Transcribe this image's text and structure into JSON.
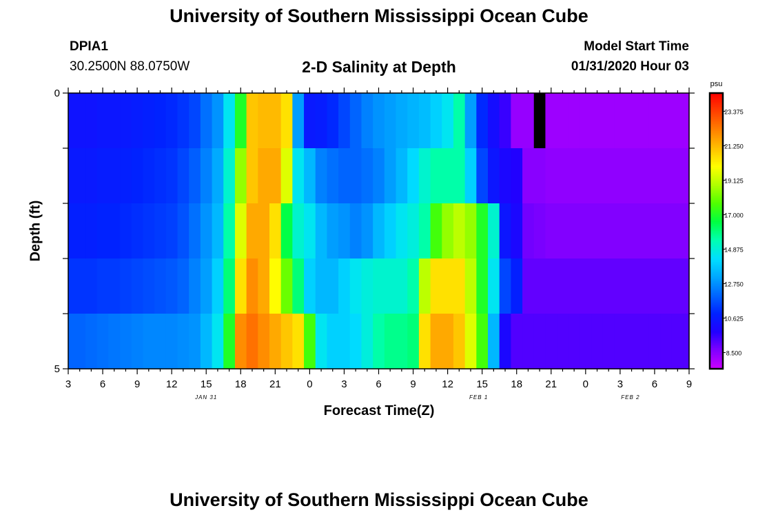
{
  "header": {
    "title": "University of Southern Mississippi Ocean Cube",
    "station_id": "DPIA1",
    "coordinates": "30.2500N 88.0750W",
    "plot_title": "2-D Salinity at Depth",
    "model_label": "Model Start Time",
    "model_time": "01/31/2020 Hour 03"
  },
  "footer": {
    "title": "University of Southern Mississippi Ocean Cube"
  },
  "chart_data": {
    "type": "heatmap",
    "title": "2-D Salinity at Depth",
    "xlabel": "Forecast Time(Z)",
    "ylabel": "Depth (ft)",
    "x_hours": [
      3,
      4,
      5,
      6,
      7,
      8,
      9,
      10,
      11,
      12,
      13,
      14,
      15,
      16,
      17,
      18,
      19,
      20,
      21,
      22,
      23,
      24,
      25,
      26,
      27,
      28,
      29,
      30,
      31,
      32,
      33,
      34,
      35,
      36,
      37,
      38,
      39,
      40,
      41,
      42,
      43,
      44,
      45,
      46,
      47,
      48,
      49,
      50,
      51,
      52,
      53,
      54,
      55,
      56,
      57
    ],
    "x_tick_labels": [
      "3",
      "6",
      "9",
      "12",
      "15",
      "18",
      "21",
      "0",
      "3",
      "6",
      "9",
      "12",
      "15",
      "18",
      "21",
      "0",
      "3",
      "6",
      "9"
    ],
    "date_labels": [
      "JAN 31",
      "FEB 1",
      "FEB 2"
    ],
    "y_range": [
      0,
      5
    ],
    "y_tick_labels": [
      "0",
      "5"
    ],
    "depth_rows": [
      0,
      1,
      2,
      3,
      4
    ],
    "zmin": 7.5,
    "zmax": 24.5,
    "colorbar": {
      "unit": "psu",
      "tick_labels": [
        "23.375",
        "21.250",
        "19.125",
        "17.000",
        "14.875",
        "12.750",
        "10.625",
        "8.500"
      ],
      "tick_values": [
        23.375,
        21.25,
        19.125,
        17.0,
        14.875,
        12.75,
        10.625,
        8.5
      ],
      "colors": [
        "#cc00ff",
        "#8000ff",
        "#2200ff",
        "#0022ff",
        "#0066ff",
        "#00a8ff",
        "#00e0ff",
        "#00ffb0",
        "#00ff40",
        "#50ff00",
        "#b0ff00",
        "#ffff00",
        "#ffc000",
        "#ff8000",
        "#ff4000",
        "#ff0000"
      ]
    },
    "values": [
      [
        10.4,
        10.4,
        10.4,
        10.5,
        10.5,
        10.6,
        10.7,
        10.8,
        10.9,
        11.0,
        11.2,
        11.5,
        12.2,
        12.8,
        14.5,
        17.0,
        21.0,
        21.2,
        21.2,
        20.5,
        13.0,
        10.6,
        10.7,
        11.0,
        11.5,
        12.0,
        12.5,
        12.8,
        13.0,
        13.2,
        13.4,
        13.6,
        14.0,
        14.5,
        15.5,
        13.0,
        11.0,
        10.2,
        9.5,
        8.3,
        8.3,
        0,
        8.2,
        8.2,
        8.2,
        8.2,
        8.2,
        8.2,
        8.2,
        8.2,
        8.2,
        8.2,
        8.2,
        8.2,
        8.2
      ],
      [
        10.6,
        10.6,
        10.6,
        10.7,
        10.7,
        10.8,
        10.9,
        11.0,
        11.1,
        11.2,
        11.5,
        11.9,
        12.5,
        13.2,
        15.0,
        18.5,
        21.0,
        21.5,
        21.5,
        19.5,
        14.5,
        13.5,
        12.5,
        12.2,
        12.0,
        12.0,
        12.2,
        12.5,
        13.0,
        13.5,
        14.2,
        15.0,
        15.5,
        15.5,
        15.5,
        14.0,
        11.5,
        10.5,
        10.0,
        9.8,
        8.5,
        8.5,
        8.4,
        8.4,
        8.4,
        8.4,
        8.4,
        8.4,
        8.4,
        8.4,
        8.4,
        8.4,
        8.4,
        8.4,
        8.4
      ],
      [
        10.8,
        10.8,
        10.8,
        10.9,
        10.9,
        11.0,
        11.1,
        11.2,
        11.3,
        11.4,
        11.7,
        12.2,
        12.8,
        13.5,
        15.5,
        19.5,
        21.5,
        21.5,
        20.5,
        16.5,
        15.0,
        14.5,
        13.5,
        13.0,
        12.8,
        12.5,
        12.8,
        13.5,
        14.0,
        14.5,
        14.8,
        15.5,
        17.5,
        18.5,
        19.0,
        18.5,
        17.0,
        15.0,
        10.5,
        10.0,
        8.8,
        8.7,
        8.6,
        8.6,
        8.6,
        8.6,
        8.6,
        8.6,
        8.6,
        8.6,
        8.6,
        8.6,
        8.6,
        8.6,
        8.6
      ],
      [
        11.2,
        11.2,
        11.2,
        11.3,
        11.3,
        11.4,
        11.5,
        11.6,
        11.7,
        11.8,
        12.0,
        12.5,
        13.0,
        14.0,
        16.0,
        20.5,
        22.0,
        21.5,
        20.0,
        18.0,
        16.0,
        14.0,
        13.5,
        13.5,
        14.0,
        14.5,
        14.8,
        15.0,
        15.0,
        15.0,
        15.5,
        19.0,
        20.5,
        20.5,
        20.5,
        19.0,
        17.0,
        14.5,
        11.5,
        10.8,
        9.0,
        9.0,
        9.0,
        9.0,
        9.0,
        9.0,
        9.0,
        9.0,
        9.0,
        9.0,
        9.0,
        9.0,
        9.0,
        9.0,
        9.0
      ],
      [
        12.0,
        12.0,
        12.1,
        12.2,
        12.3,
        12.4,
        12.5,
        12.6,
        12.6,
        12.6,
        12.7,
        12.8,
        13.5,
        14.5,
        17.0,
        22.0,
        22.5,
        22.0,
        21.5,
        21.0,
        20.5,
        17.5,
        14.5,
        14.0,
        14.0,
        14.2,
        14.8,
        15.5,
        15.8,
        15.8,
        16.0,
        20.5,
        21.5,
        21.5,
        21.0,
        19.5,
        17.5,
        13.5,
        10.0,
        9.2,
        9.2,
        9.2,
        9.2,
        9.2,
        9.2,
        9.2,
        9.2,
        9.2,
        9.2,
        9.2,
        9.2,
        9.2,
        9.2,
        9.2,
        9.2
      ]
    ]
  }
}
